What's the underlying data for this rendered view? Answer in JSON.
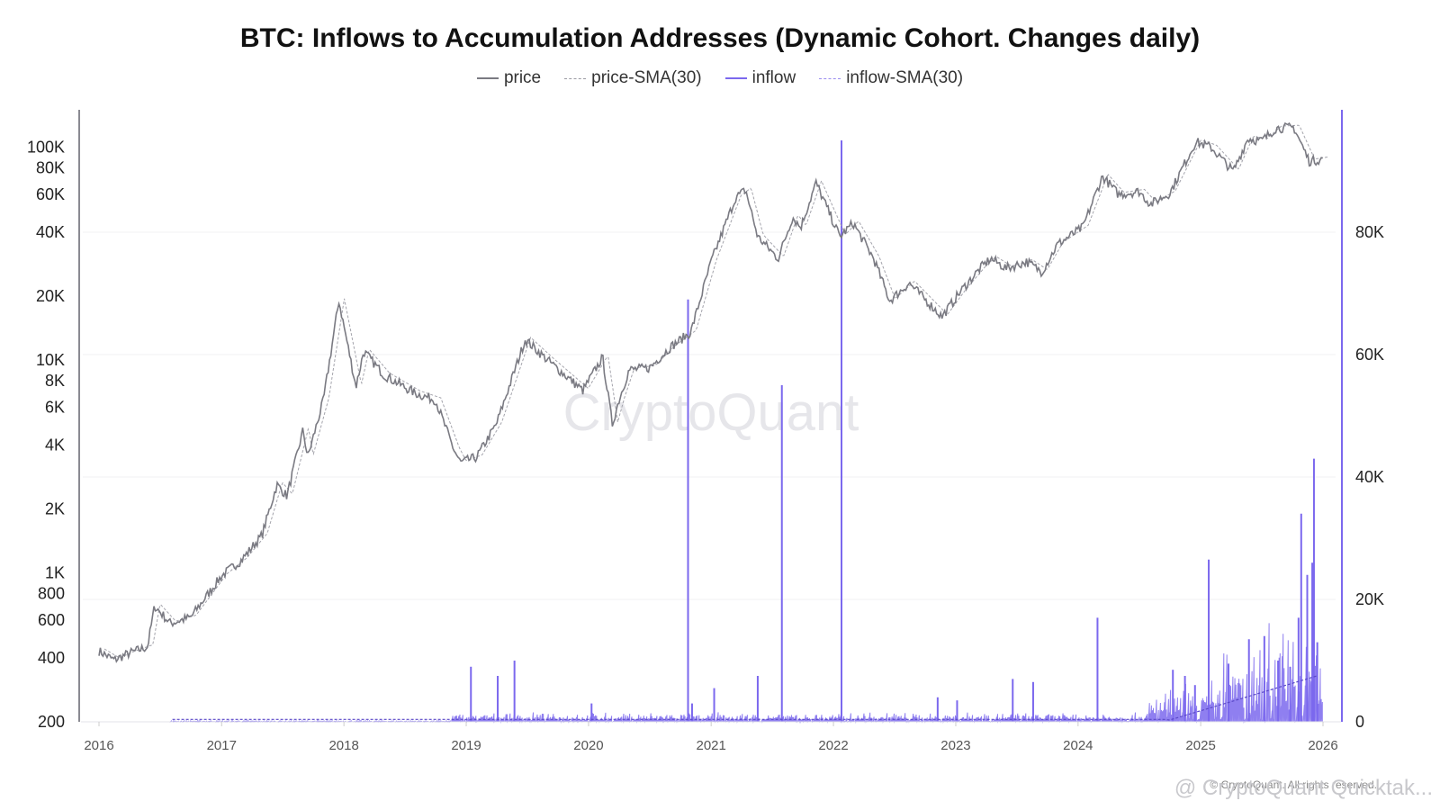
{
  "chart_data": {
    "type": "line",
    "title": "BTC: Inflows to Accumulation Addresses (Dynamic Cohort. Changes daily)",
    "legend": {
      "placement": "top-center",
      "entries": [
        {
          "name": "price",
          "style": "solid",
          "color": "#7a7a82"
        },
        {
          "name": "price-SMA(30)",
          "style": "dashed",
          "color": "#9a9aa2"
        },
        {
          "name": "inflow",
          "style": "solid",
          "color": "#7b68ee"
        },
        {
          "name": "inflow-SMA(30)",
          "style": "dashed",
          "color": "#9a8cf0"
        }
      ]
    },
    "x_axis": {
      "type": "date",
      "range": [
        "2016-01-01",
        "2026-01-01"
      ],
      "tick_labels": [
        "2016",
        "2017",
        "2018",
        "2019",
        "2020",
        "2021",
        "2022",
        "2023",
        "2024",
        "2025",
        "2026"
      ]
    },
    "y_left": {
      "scale": "log",
      "range": [
        200,
        150000
      ],
      "tick_values": [
        200,
        400,
        600,
        800,
        1000,
        2000,
        4000,
        6000,
        8000,
        10000,
        20000,
        40000,
        60000,
        80000,
        100000
      ],
      "tick_labels": [
        "200",
        "400",
        "600",
        "800",
        "1K",
        "2K",
        "4K",
        "6K",
        "8K",
        "10K",
        "20K",
        "40K",
        "60K",
        "80K",
        "100K"
      ]
    },
    "y_right": {
      "scale": "linear",
      "range": [
        0,
        100000
      ],
      "tick_values": [
        0,
        20000,
        40000,
        60000,
        80000
      ],
      "tick_labels": [
        "0",
        "20K",
        "40K",
        "60K",
        "80K"
      ]
    },
    "grid": true,
    "watermark": "CryptoQuant",
    "series": [
      {
        "name": "price",
        "axis": "left",
        "x": [
          "2016-01-01",
          "2016-02-15",
          "2016-04-01",
          "2016-05-25",
          "2016-06-15",
          "2016-08-01",
          "2016-10-01",
          "2017-01-01",
          "2017-03-01",
          "2017-05-01",
          "2017-06-15",
          "2017-07-15",
          "2017-09-01",
          "2017-09-15",
          "2017-11-01",
          "2017-12-17",
          "2018-02-06",
          "2018-03-01",
          "2018-05-01",
          "2018-08-01",
          "2018-10-01",
          "2018-11-25",
          "2018-12-15",
          "2019-02-01",
          "2019-04-01",
          "2019-06-26",
          "2019-09-01",
          "2019-12-15",
          "2020-02-12",
          "2020-03-12",
          "2020-04-01",
          "2020-05-01",
          "2020-07-01",
          "2020-09-01",
          "2020-11-01",
          "2021-01-01",
          "2021-03-15",
          "2021-04-14",
          "2021-05-20",
          "2021-07-20",
          "2021-09-01",
          "2021-09-25",
          "2021-11-10",
          "2022-01-20",
          "2022-03-01",
          "2022-05-01",
          "2022-06-18",
          "2022-08-15",
          "2022-11-21",
          "2023-01-15",
          "2023-03-15",
          "2023-04-15",
          "2023-06-01",
          "2023-08-01",
          "2023-09-15",
          "2023-11-01",
          "2024-01-15",
          "2024-03-14",
          "2024-05-01",
          "2024-07-01",
          "2024-08-05",
          "2024-10-01",
          "2024-12-17",
          "2025-02-01",
          "2025-04-08",
          "2025-05-22",
          "2025-07-01",
          "2025-08-14",
          "2025-10-06",
          "2025-11-21",
          "2025-12-31"
        ],
        "y": [
          430,
          390,
          420,
          450,
          700,
          580,
          620,
          970,
          1150,
          1500,
          2600,
          2300,
          4700,
          3500,
          6500,
          19000,
          7500,
          11000,
          8500,
          7000,
          6500,
          3800,
          3300,
          3500,
          5000,
          12500,
          10000,
          7200,
          10300,
          5000,
          6500,
          9000,
          9200,
          11500,
          13500,
          29000,
          58000,
          63000,
          38000,
          30000,
          47000,
          42000,
          68000,
          38000,
          44000,
          30000,
          19000,
          23000,
          16000,
          21000,
          27000,
          30000,
          27000,
          29000,
          26000,
          35000,
          42000,
          73000,
          60000,
          62000,
          54000,
          61000,
          106000,
          100000,
          77000,
          110000,
          107000,
          123000,
          124000,
          86000,
          88000
        ]
      },
      {
        "name": "inflow",
        "axis": "right",
        "spikes": {
          "x": [
            "2019-01-15",
            "2019-04-05",
            "2019-05-25",
            "2020-01-10",
            "2020-10-24",
            "2020-11-05",
            "2021-01-10",
            "2021-05-20",
            "2021-07-31",
            "2022-01-25",
            "2022-11-08",
            "2023-01-05",
            "2023-06-20",
            "2023-08-20",
            "2024-02-28",
            "2024-10-10",
            "2024-11-15",
            "2024-12-15",
            "2025-01-25",
            "2025-03-25",
            "2025-05-25",
            "2025-07-10",
            "2025-08-20",
            "2025-09-25",
            "2025-10-20",
            "2025-10-28",
            "2025-11-15",
            "2025-11-30",
            "2025-12-05",
            "2025-12-15"
          ],
          "y": [
            9000,
            7500,
            10000,
            3000,
            69000,
            3000,
            5500,
            7500,
            55000,
            95000,
            4000,
            3500,
            7000,
            6500,
            17000,
            8500,
            7500,
            6000,
            26500,
            9500,
            13500,
            14000,
            10000,
            9000,
            17000,
            34000,
            24000,
            26000,
            43000,
            13000
          ]
        }
      }
    ]
  },
  "footer": {
    "copyright": "© CryptoQuant. All rights reserved.",
    "brand": "@ CryptoQuant Quicktak..."
  }
}
